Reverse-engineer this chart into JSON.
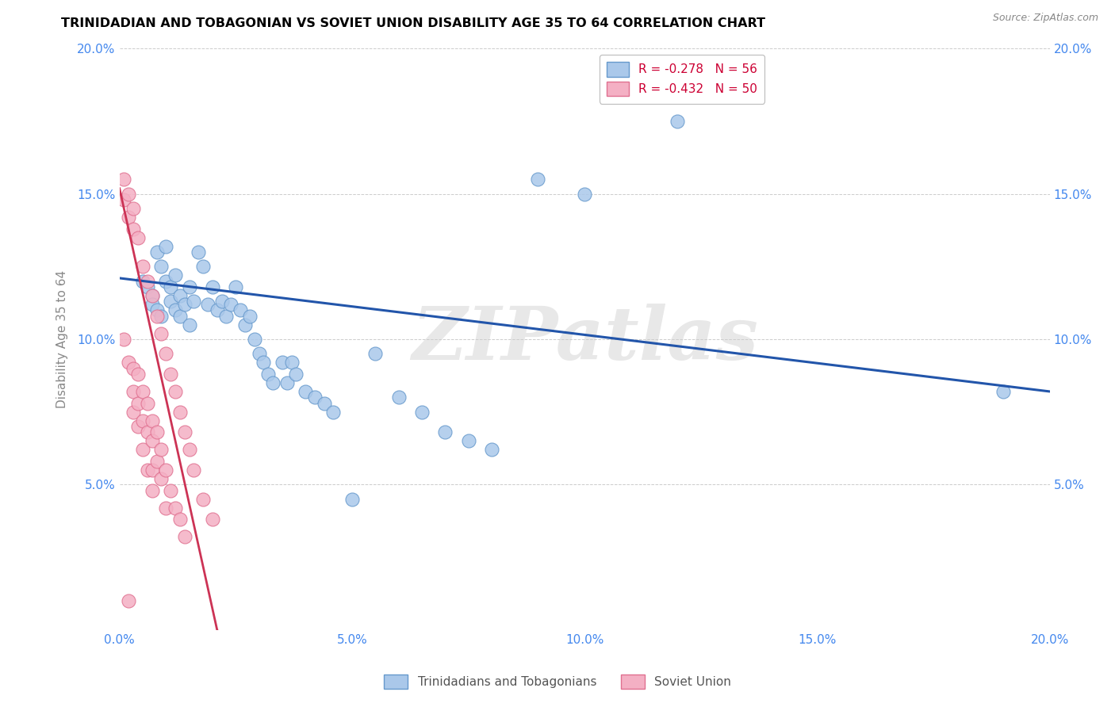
{
  "title": "TRINIDADIAN AND TOBAGONIAN VS SOVIET UNION DISABILITY AGE 35 TO 64 CORRELATION CHART",
  "source": "Source: ZipAtlas.com",
  "ylabel": "Disability Age 35 to 64",
  "xlim": [
    0.0,
    0.2
  ],
  "ylim": [
    0.0,
    0.2
  ],
  "blue_R": -0.278,
  "blue_N": 56,
  "pink_R": -0.432,
  "pink_N": 50,
  "blue_color": "#aac8ea",
  "blue_edge": "#6699cc",
  "pink_color": "#f4b0c4",
  "pink_edge": "#e07090",
  "blue_line_color": "#2255aa",
  "pink_line_color": "#cc3355",
  "legend_label_blue": "Trinidadians and Tobagonians",
  "legend_label_pink": "Soviet Union",
  "watermark": "ZIPatlas",
  "blue_x": [
    0.005,
    0.006,
    0.007,
    0.007,
    0.008,
    0.008,
    0.009,
    0.009,
    0.01,
    0.01,
    0.011,
    0.011,
    0.012,
    0.012,
    0.013,
    0.013,
    0.014,
    0.015,
    0.015,
    0.016,
    0.017,
    0.018,
    0.019,
    0.02,
    0.021,
    0.022,
    0.023,
    0.024,
    0.025,
    0.026,
    0.027,
    0.028,
    0.029,
    0.03,
    0.031,
    0.032,
    0.033,
    0.035,
    0.036,
    0.037,
    0.038,
    0.04,
    0.042,
    0.044,
    0.046,
    0.05,
    0.055,
    0.06,
    0.065,
    0.07,
    0.075,
    0.08,
    0.09,
    0.1,
    0.12,
    0.19
  ],
  "blue_y": [
    0.12,
    0.118,
    0.115,
    0.112,
    0.13,
    0.11,
    0.125,
    0.108,
    0.132,
    0.12,
    0.118,
    0.113,
    0.122,
    0.11,
    0.115,
    0.108,
    0.112,
    0.118,
    0.105,
    0.113,
    0.13,
    0.125,
    0.112,
    0.118,
    0.11,
    0.113,
    0.108,
    0.112,
    0.118,
    0.11,
    0.105,
    0.108,
    0.1,
    0.095,
    0.092,
    0.088,
    0.085,
    0.092,
    0.085,
    0.092,
    0.088,
    0.082,
    0.08,
    0.078,
    0.075,
    0.045,
    0.095,
    0.08,
    0.075,
    0.068,
    0.065,
    0.062,
    0.155,
    0.15,
    0.175,
    0.082
  ],
  "pink_x": [
    0.001,
    0.001,
    0.002,
    0.002,
    0.002,
    0.002,
    0.003,
    0.003,
    0.003,
    0.003,
    0.003,
    0.004,
    0.004,
    0.004,
    0.004,
    0.005,
    0.005,
    0.005,
    0.005,
    0.006,
    0.006,
    0.006,
    0.006,
    0.007,
    0.007,
    0.007,
    0.007,
    0.007,
    0.008,
    0.008,
    0.008,
    0.009,
    0.009,
    0.009,
    0.01,
    0.01,
    0.01,
    0.011,
    0.011,
    0.012,
    0.012,
    0.013,
    0.013,
    0.014,
    0.014,
    0.015,
    0.016,
    0.018,
    0.02,
    0.001
  ],
  "pink_y": [
    0.155,
    0.148,
    0.15,
    0.142,
    0.092,
    0.01,
    0.145,
    0.138,
    0.09,
    0.082,
    0.075,
    0.135,
    0.088,
    0.078,
    0.07,
    0.125,
    0.082,
    0.072,
    0.062,
    0.12,
    0.078,
    0.068,
    0.055,
    0.115,
    0.072,
    0.065,
    0.055,
    0.048,
    0.108,
    0.068,
    0.058,
    0.102,
    0.062,
    0.052,
    0.095,
    0.055,
    0.042,
    0.088,
    0.048,
    0.082,
    0.042,
    0.075,
    0.038,
    0.068,
    0.032,
    0.062,
    0.055,
    0.045,
    0.038,
    0.1
  ],
  "blue_line_y0": 0.121,
  "blue_line_y1": 0.082,
  "pink_line_x0": 0.0,
  "pink_line_x1": 0.021,
  "pink_line_y0": 0.152,
  "pink_line_y1": 0.0
}
